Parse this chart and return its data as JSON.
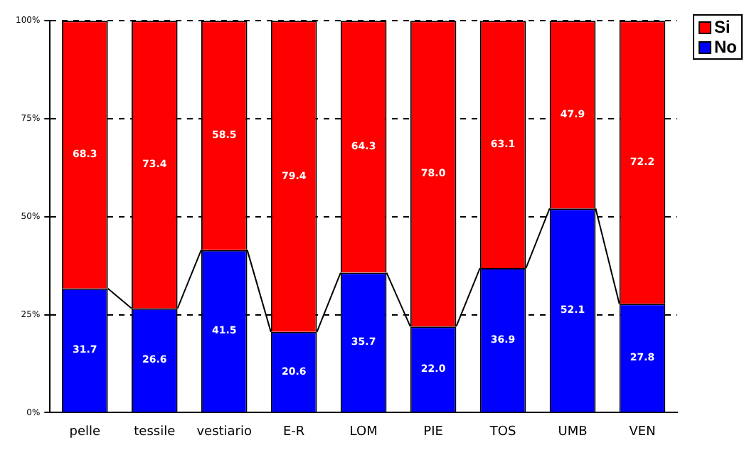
{
  "chart_data": {
    "type": "bar",
    "stacked": true,
    "categories": [
      "pelle",
      "tessile",
      "vestiario",
      "E-R",
      "LOM",
      "PIE",
      "TOS",
      "UMB",
      "VEN"
    ],
    "series": [
      {
        "name": "No",
        "color": "#0000ff",
        "values": [
          31.7,
          26.6,
          41.5,
          20.6,
          35.7,
          22.0,
          36.9,
          52.1,
          27.8
        ],
        "value_labels": [
          "31.7",
          "26.6",
          "41.5",
          "20.6",
          "35.7",
          "22.0",
          "36.9",
          "52.1",
          "27.8"
        ]
      },
      {
        "name": "Si",
        "color": "#ff0000",
        "values": [
          68.3,
          73.4,
          58.5,
          79.4,
          64.3,
          78.0,
          63.1,
          47.9,
          72.2
        ],
        "value_labels": [
          "68.3",
          "73.4",
          "58.5",
          "79.4",
          "64.3",
          "78.0",
          "63.1",
          "47.9",
          "72.2"
        ]
      }
    ],
    "ylim": [
      0,
      100
    ],
    "yticks": [
      {
        "value": 0,
        "label": "0%"
      },
      {
        "value": 25,
        "label": "25%"
      },
      {
        "value": 50,
        "label": "50%"
      },
      {
        "value": 75,
        "label": "75%"
      },
      {
        "value": 100,
        "label": "100%"
      }
    ],
    "grid": "y",
    "legend": "top right"
  }
}
